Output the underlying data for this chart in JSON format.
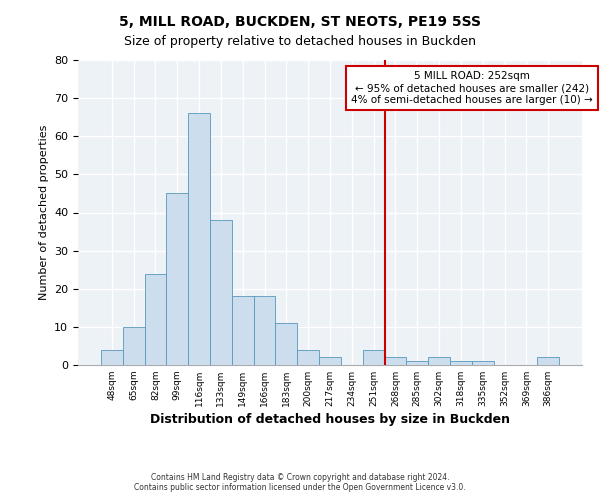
{
  "title": "5, MILL ROAD, BUCKDEN, ST NEOTS, PE19 5SS",
  "subtitle": "Size of property relative to detached houses in Buckden",
  "xlabel": "Distribution of detached houses by size in Buckden",
  "ylabel": "Number of detached properties",
  "bar_color": "#ccdded",
  "bar_edge_color": "#5599bb",
  "background_color": "#edf2f7",
  "grid_color": "#ffffff",
  "categories": [
    "48sqm",
    "65sqm",
    "82sqm",
    "99sqm",
    "116sqm",
    "133sqm",
    "149sqm",
    "166sqm",
    "183sqm",
    "200sqm",
    "217sqm",
    "234sqm",
    "251sqm",
    "268sqm",
    "285sqm",
    "302sqm",
    "318sqm",
    "335sqm",
    "352sqm",
    "369sqm",
    "386sqm"
  ],
  "values": [
    4,
    10,
    24,
    45,
    66,
    38,
    18,
    18,
    11,
    4,
    2,
    0,
    4,
    2,
    1,
    2,
    1,
    1,
    0,
    0,
    2
  ],
  "vline_color": "#cc0000",
  "annotation_title": "5 MILL ROAD: 252sqm",
  "annotation_line1": "← 95% of detached houses are smaller (242)",
  "annotation_line2": "4% of semi-detached houses are larger (10) →",
  "annotation_box_color": "#cc0000",
  "ylim": [
    0,
    80
  ],
  "yticks": [
    0,
    10,
    20,
    30,
    40,
    50,
    60,
    70,
    80
  ],
  "footer1": "Contains HM Land Registry data © Crown copyright and database right 2024.",
  "footer2": "Contains public sector information licensed under the Open Government Licence v3.0."
}
